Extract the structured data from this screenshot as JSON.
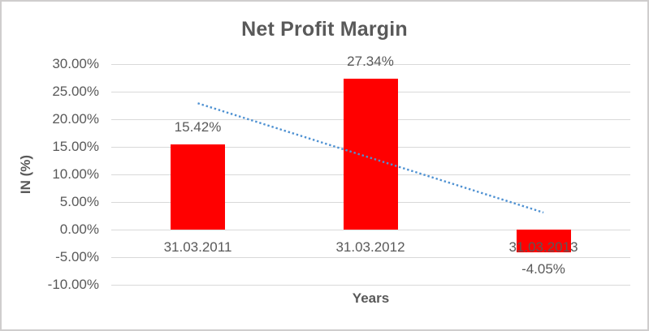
{
  "frame": {
    "background": "#ffffff",
    "border_color": "#cfcdcd"
  },
  "chart_data": {
    "type": "bar",
    "title": "Net Profit Margin",
    "xlabel": "Years",
    "ylabel": "IN (%)",
    "categories": [
      "31.03.2011",
      "31.03.2012",
      "31.03.2013"
    ],
    "values": [
      15.42,
      27.34,
      -4.05
    ],
    "data_labels": [
      "15.42%",
      "27.34%",
      "-4.05%"
    ],
    "ylim": [
      -10,
      30
    ],
    "ytick_step": 5,
    "yticks": [
      {
        "value": 30,
        "label": "30.00%"
      },
      {
        "value": 25,
        "label": "25.00%"
      },
      {
        "value": 20,
        "label": "20.00%"
      },
      {
        "value": 15,
        "label": "15.00%"
      },
      {
        "value": 10,
        "label": "10.00%"
      },
      {
        "value": 5,
        "label": "5.00%"
      },
      {
        "value": 0,
        "label": "0.00%"
      },
      {
        "value": -5,
        "label": "-5.00%"
      },
      {
        "value": -10,
        "label": "-10.00%"
      }
    ],
    "grid": true,
    "legend": "none",
    "colors": {
      "bar": "#FF0000",
      "trendline": "#4E91D2",
      "gridline": "#D9D9D9",
      "text": "#595959"
    },
    "trendline": {
      "type": "linear",
      "style": "dotted",
      "start_value": 22.9,
      "end_value": 3.1
    }
  }
}
